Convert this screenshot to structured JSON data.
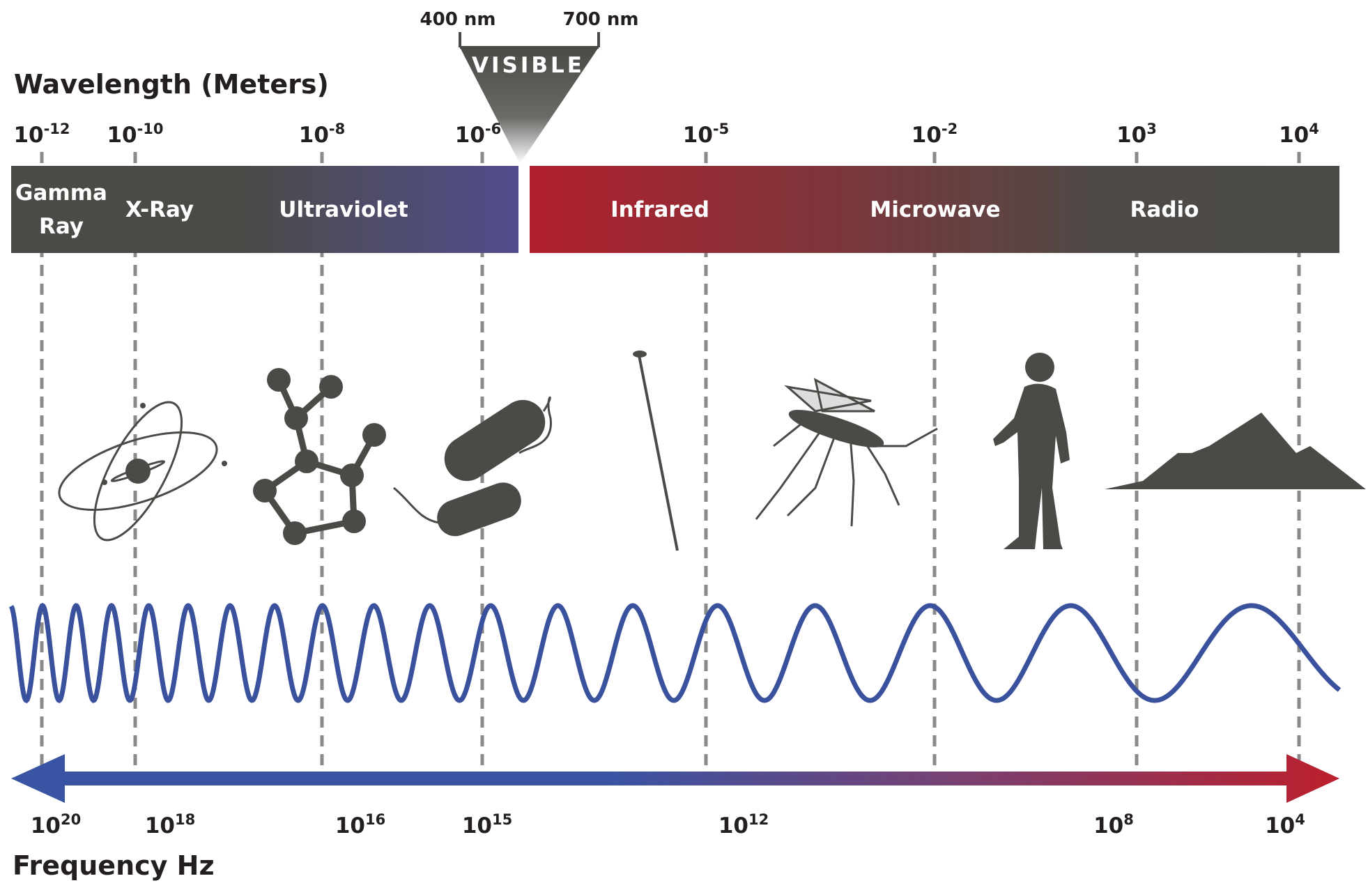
{
  "visible": {
    "label": "VISIBLE",
    "start": "400 nm",
    "end": "700 nm"
  },
  "wavelength": {
    "title": "Wavelength (Meters)",
    "ticks": [
      {
        "base": "10",
        "exponent": "-12"
      },
      {
        "base": "10",
        "exponent": "-10"
      },
      {
        "base": "10",
        "exponent": "-8"
      },
      {
        "base": "10",
        "exponent": "-6"
      },
      {
        "base": "10",
        "exponent": "-5"
      },
      {
        "base": "10",
        "exponent": "-2"
      },
      {
        "base": "10",
        "exponent": "3"
      },
      {
        "base": "10",
        "exponent": "4"
      }
    ]
  },
  "bands": [
    {
      "lines": [
        "Gamma",
        "Ray"
      ]
    },
    {
      "lines": [
        "X-Ray"
      ]
    },
    {
      "lines": [
        "Ultraviolet"
      ]
    },
    {
      "lines": [
        "Infrared"
      ]
    },
    {
      "lines": [
        "Microwave"
      ]
    },
    {
      "lines": [
        "Radio"
      ]
    }
  ],
  "frequency": {
    "title": "Frequency Hz",
    "ticks": [
      {
        "base": "10",
        "exponent": "20"
      },
      {
        "base": "10",
        "exponent": "18"
      },
      {
        "base": "10",
        "exponent": "16"
      },
      {
        "base": "10",
        "exponent": "15"
      },
      {
        "base": "10",
        "exponent": "12"
      },
      {
        "base": "10",
        "exponent": "8"
      },
      {
        "base": "10",
        "exponent": "4"
      }
    ]
  }
}
